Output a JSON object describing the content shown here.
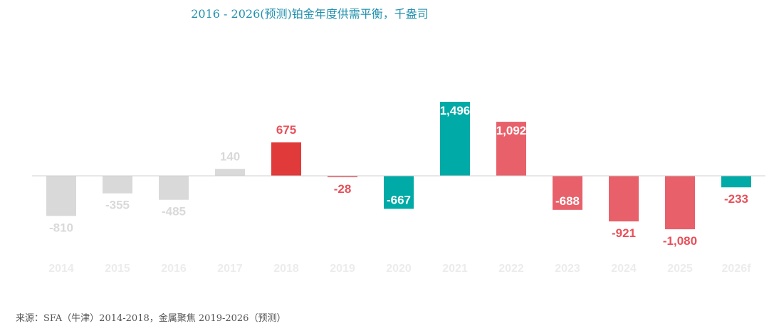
{
  "chart_data": {
    "type": "bar",
    "title": "2016 - 2026(预测)铂金年度供需平衡，千盎司",
    "source": "来源：SFA（牛津）2014-2018，金属聚焦 2019-2026（预测）",
    "xlabel": "",
    "ylabel": "",
    "ylim": [
      -1150,
      1500
    ],
    "grid": false,
    "categories": [
      "2014",
      "2015",
      "2016",
      "2017",
      "2018",
      "2019",
      "2020",
      "2021",
      "2022",
      "2023",
      "2024",
      "2025",
      "2026f"
    ],
    "values": [
      -810,
      -355,
      -485,
      140,
      675,
      -28,
      -667,
      1496,
      1092,
      -688,
      -921,
      -1080,
      -233
    ],
    "labels": [
      "-810",
      "-355",
      "-485",
      "140",
      "675",
      "-28",
      "-667",
      "1,496",
      "1,092",
      "-688",
      "-921",
      "-1,080",
      "-233"
    ],
    "bar_colors": [
      "#d9d9d9",
      "#d9d9d9",
      "#d9d9d9",
      "#d9d9d9",
      "#e03a3a",
      "#e8606a",
      "#00aaa6",
      "#00aaa6",
      "#e8606a",
      "#e8606a",
      "#e8606a",
      "#e8606a",
      "#00aaa6"
    ],
    "label_colors": [
      "#d9d9d9",
      "#d9d9d9",
      "#d9d9d9",
      "#d9d9d9",
      "#e8505a",
      "#e8505a",
      "#ffffff",
      "#ffffff",
      "#ffffff",
      "#ffffff",
      "#e8505a",
      "#e8505a",
      "#e8505a"
    ],
    "label_inside": [
      false,
      false,
      false,
      false,
      false,
      false,
      true,
      true,
      true,
      true,
      false,
      false,
      false
    ]
  }
}
